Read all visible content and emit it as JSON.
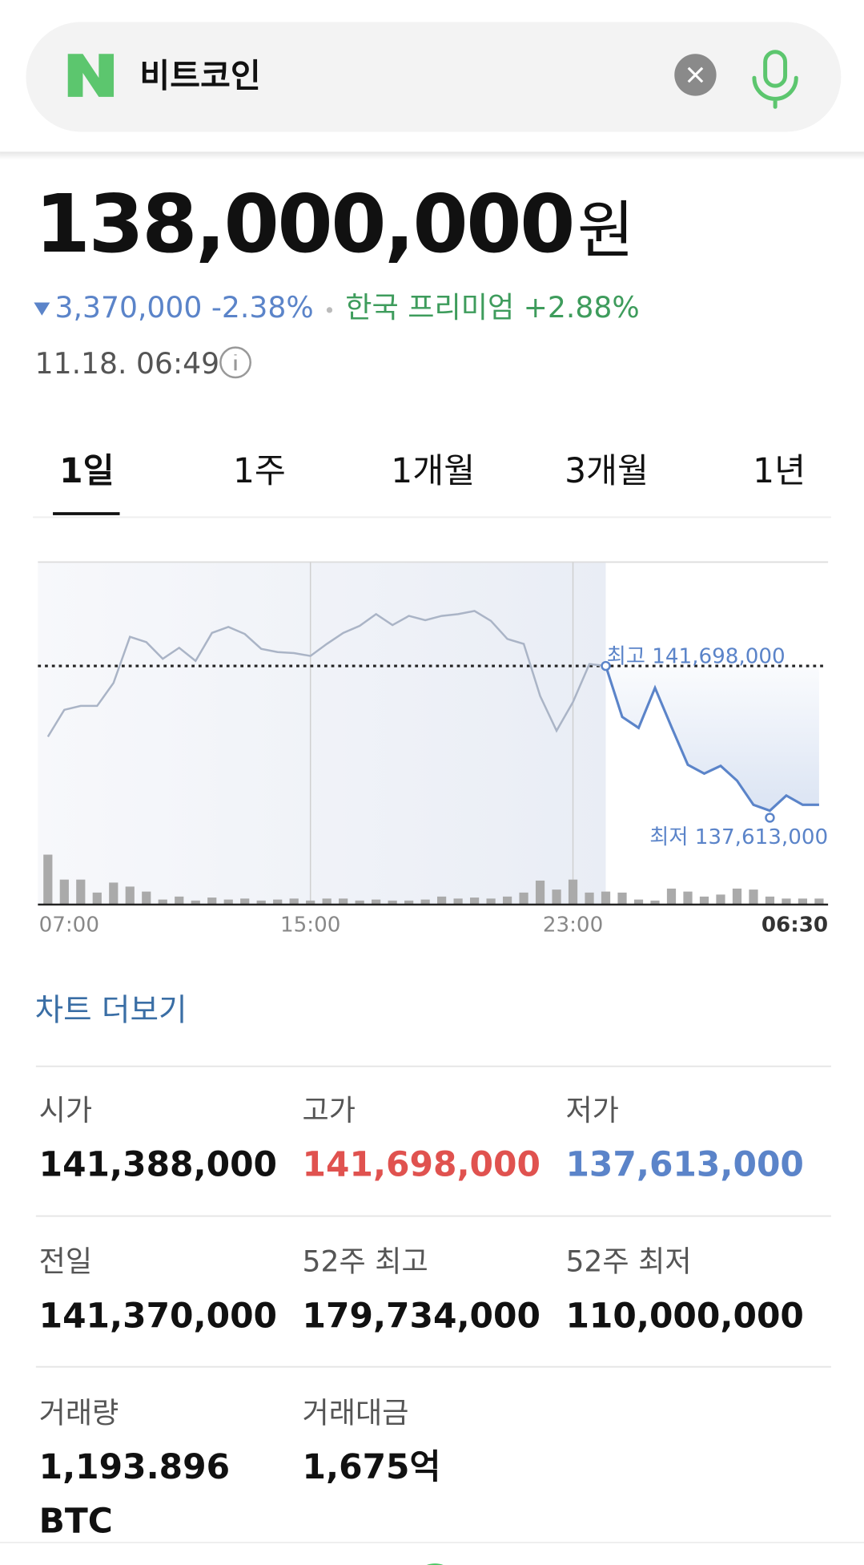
{
  "search": {
    "query": "비트코인"
  },
  "quote": {
    "price": "138,000,000",
    "unit": "원",
    "change": "3,370,000 -2.38%",
    "premium": "한국 프리미엄 +2.88%",
    "time": "11.18. 06:49"
  },
  "tabs": [
    "1일",
    "1주",
    "1개월",
    "3개월",
    "1년"
  ],
  "chart_data": {
    "type": "line",
    "categories": [
      "07:00",
      null,
      null,
      null,
      null,
      null,
      null,
      null,
      null,
      null,
      null,
      null,
      null,
      null,
      null,
      null,
      "15:00",
      null,
      null,
      null,
      null,
      null,
      null,
      null,
      null,
      null,
      null,
      null,
      null,
      null,
      null,
      null,
      "23:00",
      null,
      null,
      null,
      null,
      null,
      null,
      null,
      null,
      null,
      null,
      null,
      null,
      null,
      null,
      "06:30"
    ],
    "series": [
      {
        "color": "#5b84c9",
        "values": [
          139700000,
          140460000,
          140570000,
          140570000,
          141220000,
          142520000,
          142370000,
          141900000,
          142210000,
          141840000,
          142630000,
          142800000,
          142600000,
          142180000,
          142090000,
          142060000,
          141980000,
          142320000,
          142630000,
          142830000,
          143160000,
          142850000,
          143110000,
          142990000,
          143110000,
          143160000,
          143250000,
          142970000,
          142460000,
          142320000,
          140850000,
          139870000,
          140680000,
          141750000,
          141698000,
          140260000,
          139950000,
          141080000,
          139980000,
          138910000,
          138660000,
          138880000,
          138460000,
          137780000,
          137613000,
          138040000,
          137780000,
          137780000
        ]
      }
    ],
    "volumes": [
      50,
      25,
      25,
      12,
      22,
      18,
      13,
      5,
      8,
      4,
      7,
      5,
      6,
      4,
      5,
      6,
      4,
      6,
      6,
      4,
      5,
      4,
      4,
      5,
      8,
      6,
      7,
      6,
      8,
      12,
      24,
      15,
      25,
      12,
      13,
      12,
      5,
      4,
      16,
      13,
      8,
      10,
      16,
      15,
      8,
      6,
      6,
      6
    ],
    "ylim": [
      134965000,
      144628000
    ],
    "high": {
      "value": 141698000,
      "label": "최고 141,698,000"
    },
    "low": {
      "value": 137613000,
      "label": "최저 137,613,000"
    }
  },
  "more_link": "차트 더보기",
  "stats": [
    {
      "label": "시가",
      "value": [
        "141,388,000"
      ]
    },
    {
      "label": "고가",
      "value": [
        "141,698,000"
      ],
      "color": "#e0524f"
    },
    {
      "label": "저가",
      "value": [
        "137,613,000"
      ],
      "color": "#5b84c9"
    },
    {
      "label": "전일",
      "value": [
        "141,370,000"
      ]
    },
    {
      "label": "52주 최고",
      "value": [
        "179,734,000"
      ]
    },
    {
      "label": "52주 최저",
      "value": [
        "110,000,000"
      ]
    },
    {
      "label": "거래량",
      "value": [
        "1,193.896",
        "BTC"
      ]
    },
    {
      "label": "거래대금",
      "value": [
        "1,675억"
      ]
    }
  ]
}
